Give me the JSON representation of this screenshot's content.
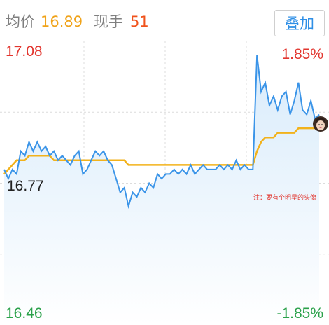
{
  "header": {
    "avg_label": "均价",
    "avg_value": "16.89",
    "volume_label": "现手",
    "volume_value": "51",
    "overlay_button": "叠加"
  },
  "labels": {
    "max_price": "17.08",
    "max_pct": "1.85%",
    "prev_close": "16.77",
    "min_price": "16.46",
    "min_pct": "-1.85%",
    "note": "注：要有个明星的头像"
  },
  "colors": {
    "price_line": "#3a94e8",
    "avg_line": "#f2b21b",
    "up": "#e2362f",
    "down": "#2aa14a"
  },
  "chart_data": {
    "type": "line",
    "ylim": [
      16.46,
      17.08
    ],
    "prev_close": 16.77,
    "grid": true,
    "series": [
      {
        "values": [
          16.8,
          16.78,
          16.8,
          16.79,
          16.84,
          16.83,
          16.86,
          16.84,
          16.86,
          16.84,
          16.85,
          16.83,
          16.84,
          16.82,
          16.83,
          16.82,
          16.81,
          16.83,
          16.84,
          16.79,
          16.8,
          16.82,
          16.84,
          16.83,
          16.84,
          16.82,
          16.81,
          16.78,
          16.75,
          16.76,
          16.72,
          16.75,
          16.74,
          16.76,
          16.75,
          16.77,
          16.76,
          16.79,
          16.78,
          16.79,
          16.79,
          16.8,
          16.79,
          16.8,
          16.79,
          16.81,
          16.79,
          16.8,
          16.81,
          16.8,
          16.8,
          16.8,
          16.81,
          16.8,
          16.81,
          16.8,
          16.82,
          16.8,
          16.81,
          16.8,
          16.8,
          17.05,
          16.97,
          16.99,
          16.94,
          16.96,
          16.93,
          16.96,
          16.97,
          16.92,
          16.95,
          16.99,
          16.93,
          16.92,
          16.95,
          16.91,
          16.92
        ]
      },
      {
        "values": [
          16.79,
          16.8,
          16.81,
          16.82,
          16.82,
          16.82,
          16.83,
          16.83,
          16.83,
          16.83,
          16.83,
          16.83,
          16.82,
          16.82,
          16.82,
          16.82,
          16.82,
          16.82,
          16.82,
          16.82,
          16.82,
          16.82,
          16.82,
          16.82,
          16.82,
          16.82,
          16.82,
          16.82,
          16.82,
          16.82,
          16.81,
          16.81,
          16.81,
          16.81,
          16.81,
          16.81,
          16.81,
          16.81,
          16.81,
          16.81,
          16.81,
          16.81,
          16.81,
          16.81,
          16.81,
          16.81,
          16.81,
          16.81,
          16.81,
          16.81,
          16.81,
          16.81,
          16.81,
          16.81,
          16.81,
          16.81,
          16.81,
          16.81,
          16.81,
          16.81,
          16.81,
          16.84,
          16.86,
          16.87,
          16.87,
          16.87,
          16.88,
          16.88,
          16.88,
          16.88,
          16.88,
          16.89,
          16.89,
          16.89,
          16.89,
          16.89,
          16.89
        ]
      }
    ]
  }
}
